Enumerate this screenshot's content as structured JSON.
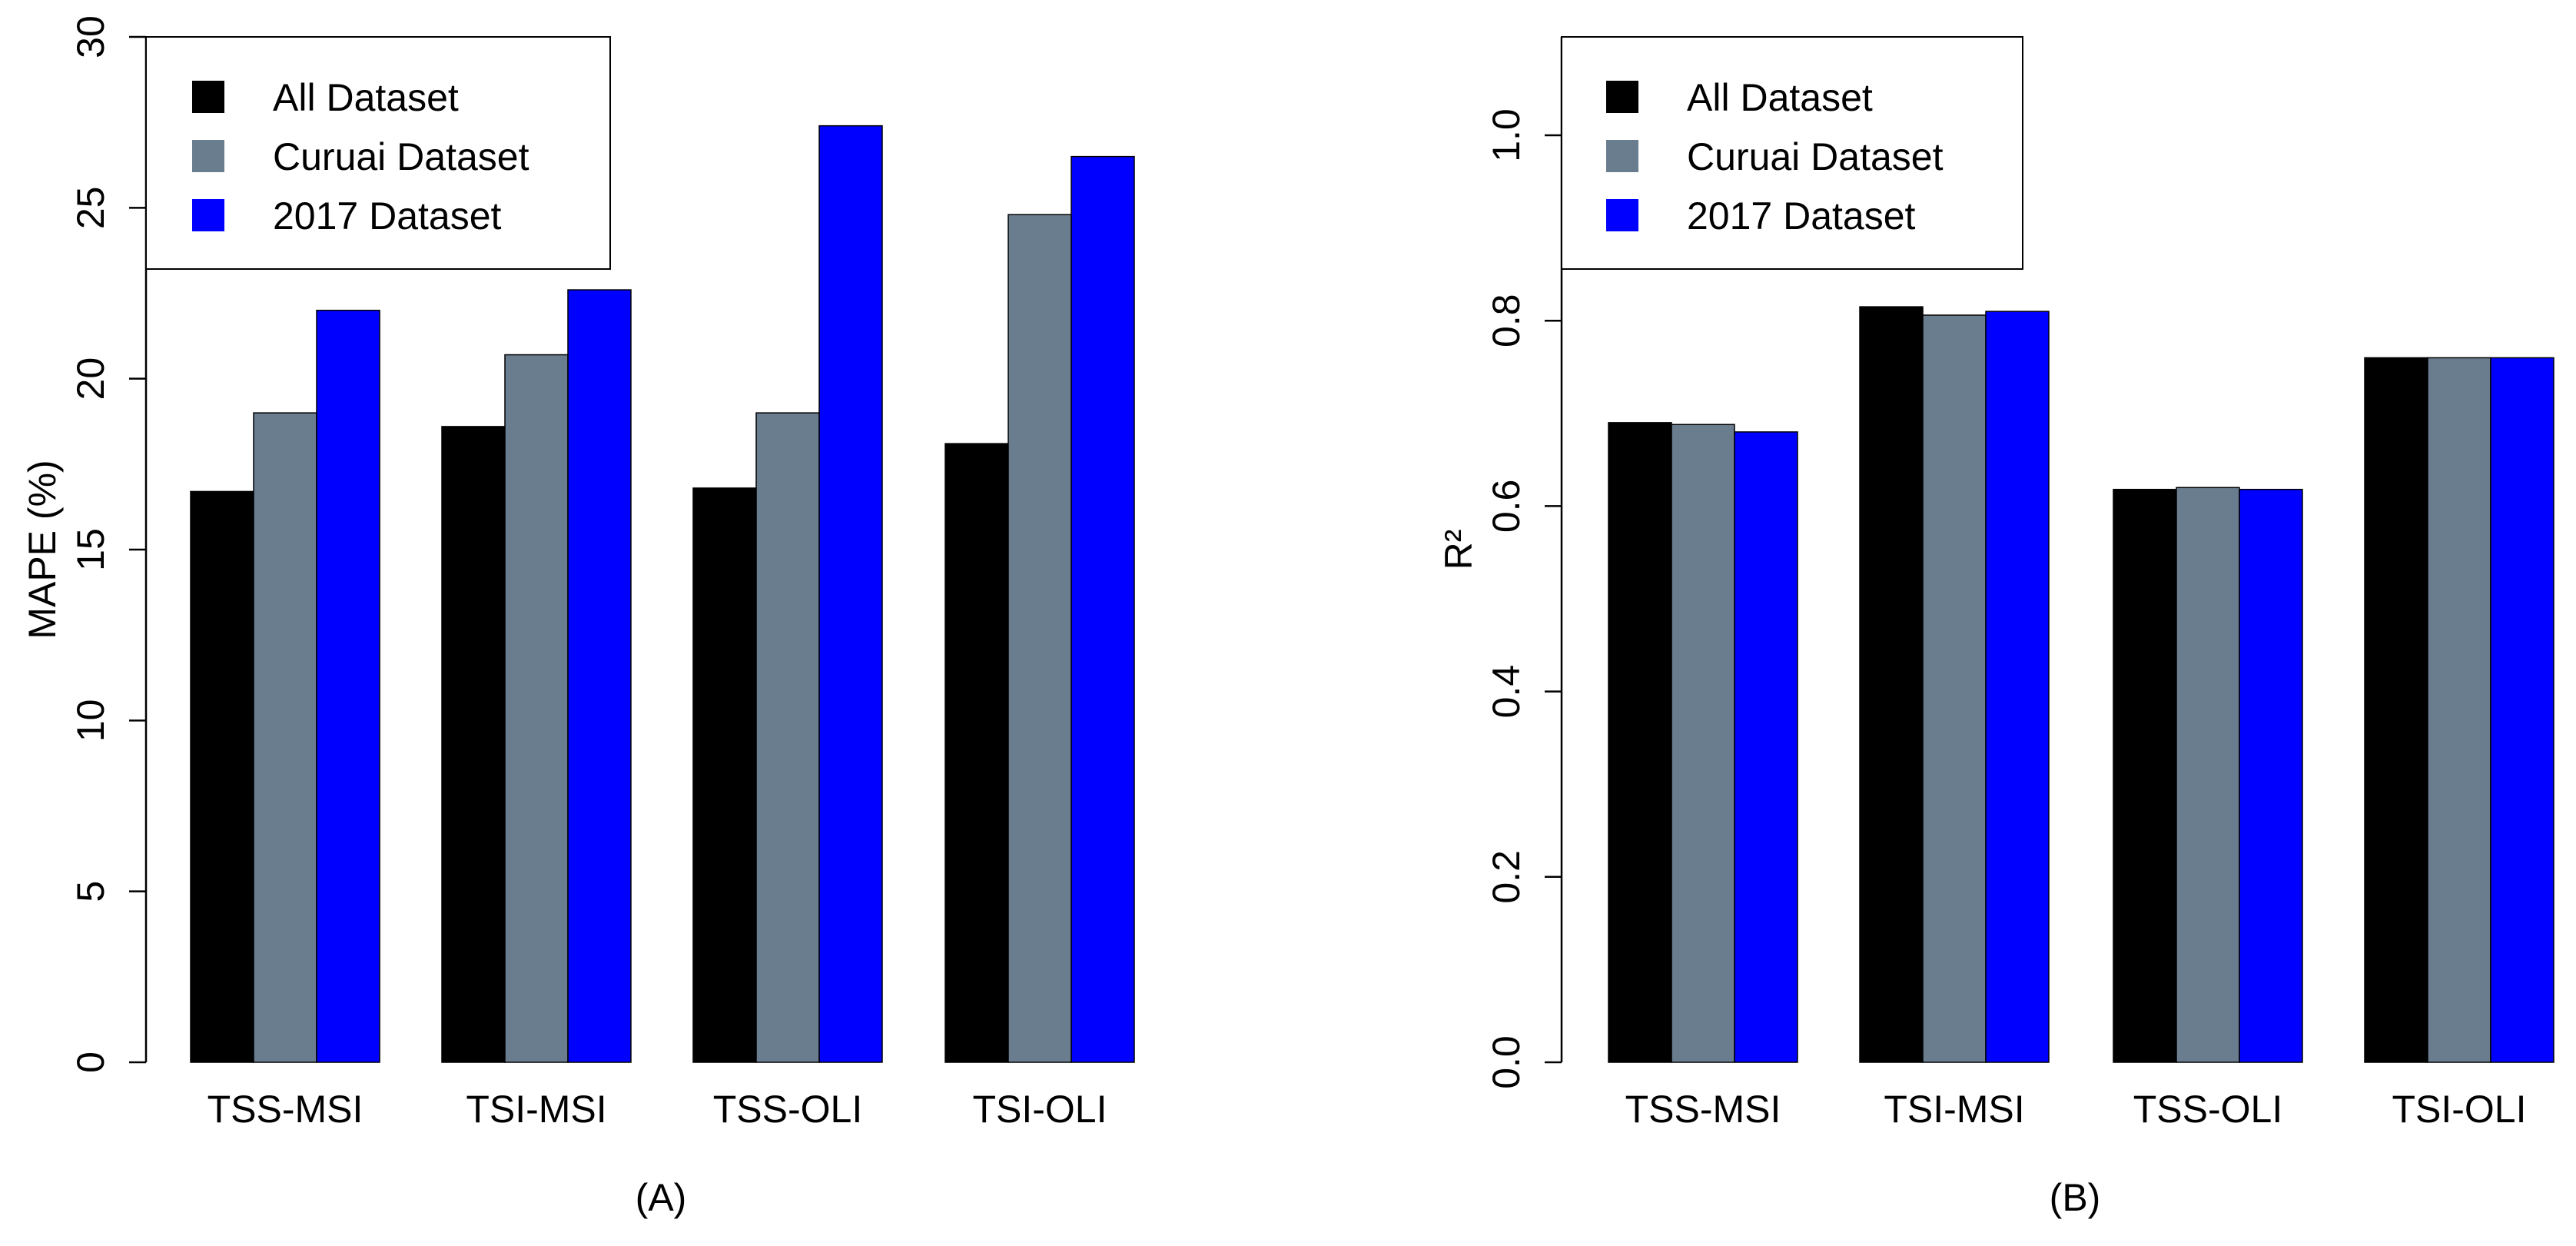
{
  "chart_data": [
    {
      "type": "bar",
      "panel_label": "(A)",
      "title": "",
      "xlabel": "",
      "ylabel": "MAPE (%)",
      "ylim": [
        0,
        30
      ],
      "yticks": [
        0,
        5,
        10,
        15,
        20,
        25,
        30
      ],
      "categories": [
        "TSS-MSI",
        "TSI-MSI",
        "TSS-OLI",
        "TSI-OLI"
      ],
      "series": [
        {
          "name": "All Dataset",
          "color": "#000000",
          "values": [
            16.7,
            18.6,
            16.8,
            18.1
          ]
        },
        {
          "name": "Curuai Dataset",
          "color": "#6a7d8e",
          "values": [
            19.0,
            20.7,
            19.0,
            24.8
          ]
        },
        {
          "name": "2017 Dataset",
          "color": "#0000ff",
          "values": [
            22.0,
            22.6,
            27.4,
            26.5
          ]
        }
      ],
      "legend_position": "top-left",
      "grid": false
    },
    {
      "type": "bar",
      "panel_label": "(B)",
      "title": "",
      "xlabel": "",
      "ylabel": "R²",
      "ylim": [
        0,
        1.1
      ],
      "yticks": [
        "0.0",
        "0.2",
        "0.4",
        "0.6",
        "0.8",
        "1.0"
      ],
      "categories": [
        "TSS-MSI",
        "TSI-MSI",
        "TSS-OLI",
        "TSI-OLI"
      ],
      "series": [
        {
          "name": "All Dataset",
          "color": "#000000",
          "values": [
            0.69,
            0.815,
            0.618,
            0.76
          ]
        },
        {
          "name": "Curuai Dataset",
          "color": "#6a7d8e",
          "values": [
            0.688,
            0.806,
            0.62,
            0.76
          ]
        },
        {
          "name": "2017 Dataset",
          "color": "#0000ff",
          "values": [
            0.68,
            0.81,
            0.618,
            0.76
          ]
        }
      ],
      "legend_position": "top-left",
      "grid": false
    }
  ]
}
